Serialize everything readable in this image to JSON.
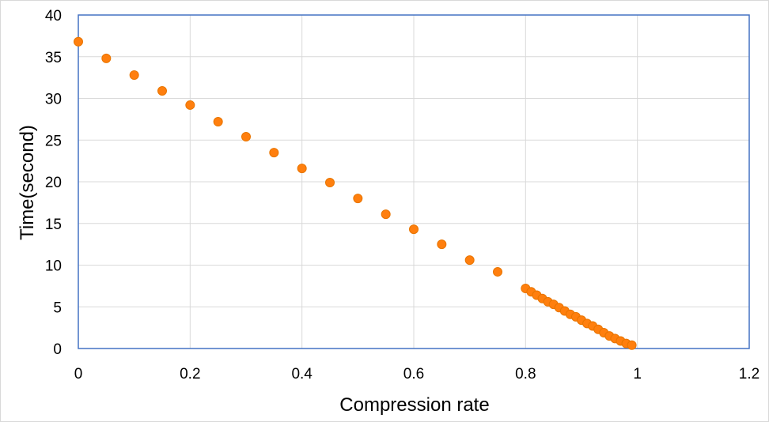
{
  "chart_data": {
    "type": "scatter",
    "xlabel": "Compression rate",
    "ylabel": "Time(second)",
    "xlim": [
      0,
      1.2
    ],
    "ylim": [
      0,
      40
    ],
    "x_ticks": [
      "0",
      "0.2",
      "0.4",
      "0.6",
      "0.8",
      "1",
      "1.2"
    ],
    "y_ticks": [
      "0",
      "5",
      "10",
      "15",
      "20",
      "25",
      "30",
      "35",
      "40"
    ],
    "grid": true,
    "legend": "none",
    "colors": {
      "marker_fill": "#ff7f0e",
      "marker_edge": "#e87500",
      "plot_border": "#4472c4",
      "grid": "#d9d9d9"
    },
    "series": [
      {
        "x": [
          0.0,
          0.05,
          0.1,
          0.15,
          0.2,
          0.25,
          0.3,
          0.35,
          0.4,
          0.45,
          0.5,
          0.55,
          0.6,
          0.65,
          0.7,
          0.75,
          0.8,
          0.81,
          0.82,
          0.83,
          0.84,
          0.85,
          0.86,
          0.87,
          0.88,
          0.89,
          0.9,
          0.91,
          0.92,
          0.93,
          0.94,
          0.95,
          0.96,
          0.97,
          0.98,
          0.99
        ],
        "y": [
          36.8,
          34.8,
          32.8,
          30.9,
          29.2,
          27.2,
          25.4,
          23.5,
          21.6,
          19.9,
          18.0,
          16.1,
          14.3,
          12.5,
          10.6,
          9.2,
          7.2,
          6.8,
          6.4,
          6.0,
          5.6,
          5.3,
          4.9,
          4.5,
          4.1,
          3.8,
          3.4,
          3.0,
          2.7,
          2.3,
          1.9,
          1.5,
          1.2,
          0.9,
          0.6,
          0.4
        ]
      }
    ]
  }
}
